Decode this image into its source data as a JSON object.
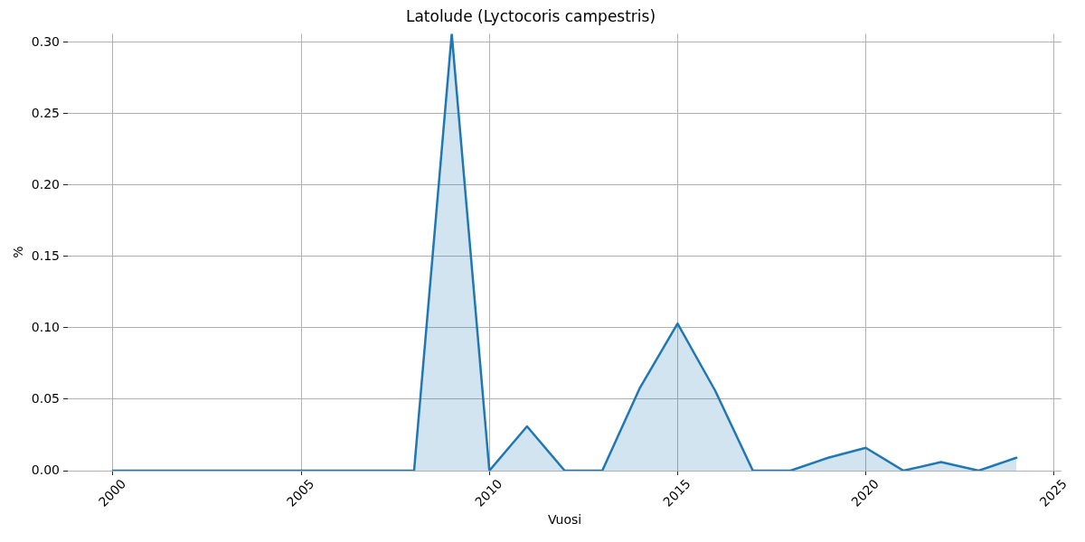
{
  "chart_data": {
    "type": "area",
    "title": "Latolude (Lyctocoris campestris)",
    "xlabel": "Vuosi",
    "ylabel": "%",
    "x": [
      2000,
      2001,
      2002,
      2003,
      2004,
      2005,
      2006,
      2007,
      2008,
      2009,
      2010,
      2011,
      2012,
      2013,
      2014,
      2015,
      2016,
      2017,
      2018,
      2019,
      2020,
      2021,
      2022,
      2023,
      2024
    ],
    "series": [
      {
        "color": "#1f77b4",
        "values": [
          0,
          0,
          0,
          0,
          0,
          0,
          0,
          0,
          0,
          0.306,
          0,
          0.031,
          0,
          0,
          0.058,
          0.103,
          0.056,
          0,
          0,
          0.009,
          0.016,
          0,
          0.006,
          0,
          0.009
        ]
      }
    ],
    "xlim": [
      1998.8,
      2025.2
    ],
    "xticks": [
      2000,
      2005,
      2010,
      2015,
      2020,
      2025
    ],
    "ylim": [
      0,
      0.306
    ],
    "yticks": [
      {
        "value": 0,
        "label": "0.00"
      },
      {
        "value": 0.05,
        "label": "0.05"
      },
      {
        "value": 0.1,
        "label": "0.10"
      },
      {
        "value": 0.15,
        "label": "0.15"
      },
      {
        "value": 0.2,
        "label": "0.20"
      },
      {
        "value": 0.25,
        "label": "0.25"
      },
      {
        "value": 0.3,
        "label": "0.30"
      }
    ],
    "grid": true
  }
}
